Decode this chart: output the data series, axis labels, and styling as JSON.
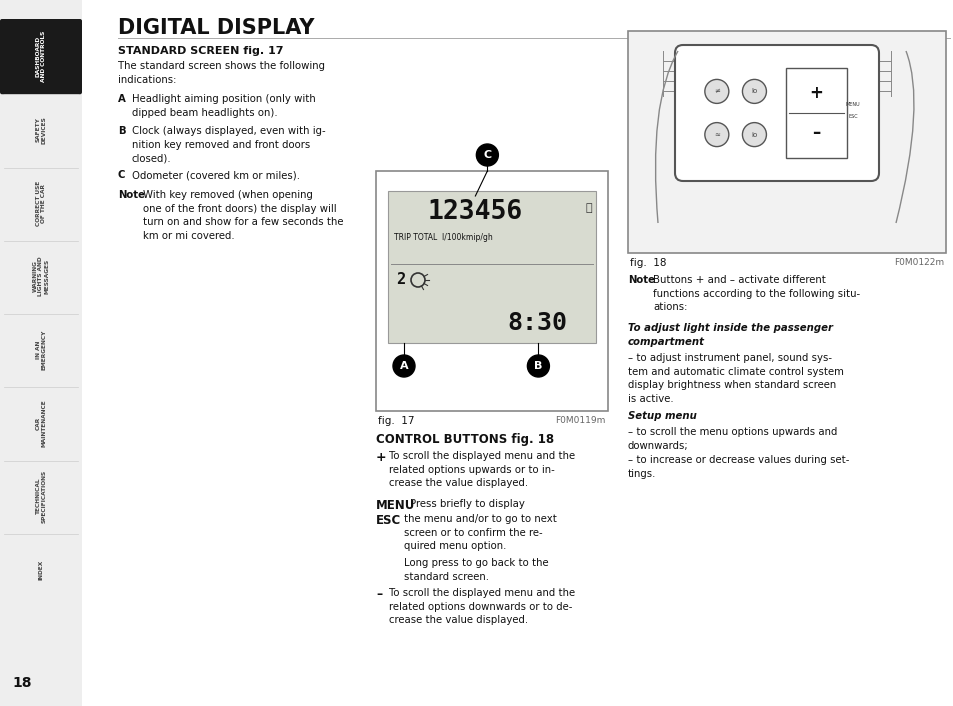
{
  "bg_color": "#ffffff",
  "page_bg": "#ffffff",
  "sidebar_active_bg": "#1a1a1a",
  "sidebar_active_text": "#ffffff",
  "sidebar_inactive_text": "#444444",
  "sidebar_tabs": [
    {
      "label": "DASHBOARD\nAND CONTROLS",
      "active": true
    },
    {
      "label": "SAFETY\nDEVICES",
      "active": false
    },
    {
      "label": "CORRECT USE\nOF THE CAR",
      "active": false
    },
    {
      "label": "WARNING\nLIGHTS AND\nMESSAGES",
      "active": false
    },
    {
      "label": "IN AN\nEMERGENCY",
      "active": false
    },
    {
      "label": "CAR\nMAINTENANCE",
      "active": false
    },
    {
      "label": "TECHNICAL\nSPECIFICATIONS",
      "active": false
    },
    {
      "label": "INDEX",
      "active": false
    }
  ],
  "page_number": "18",
  "title": "DIGITAL DISPLAY",
  "fig17_caption": "fig.  17",
  "fig17_code": "F0M0119m",
  "fig18_caption": "fig.  18",
  "fig18_code": "F0M0122m"
}
